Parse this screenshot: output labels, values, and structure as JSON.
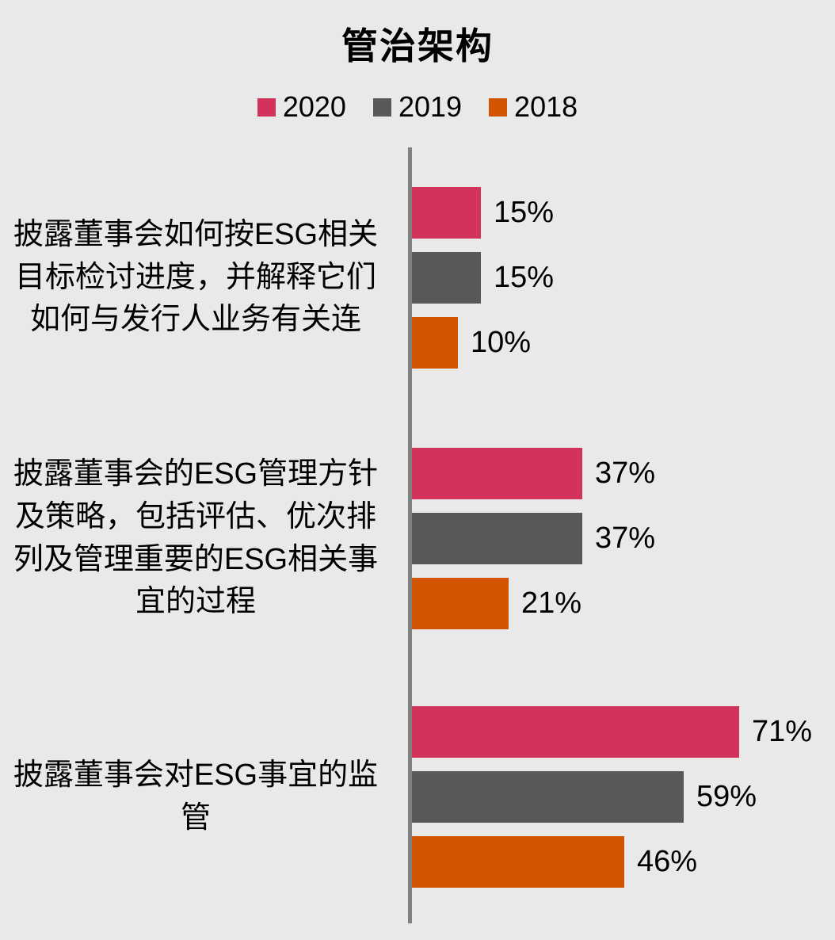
{
  "chart_data": {
    "type": "bar",
    "orientation": "horizontal",
    "title": "管治架构",
    "legend_position": "top",
    "grid": false,
    "background_color": "#e9e9e9",
    "axis_line_color": "#808080",
    "xlim": [
      0,
      100
    ],
    "value_label_format": "{value}%",
    "categories": [
      "披露董事会如何按ESG相关目标检讨进度，并解释它们如何与发行人业务有关连",
      "披露董事会的ESG管理方针及策略，包括评估、优次排列及管理重要的ESG相关事宜的过程",
      "披露董事会对ESG事宜的监管"
    ],
    "series": [
      {
        "name": "2020",
        "color": "#d2335a",
        "values": [
          15,
          37,
          71
        ]
      },
      {
        "name": "2019",
        "color": "#595959",
        "values": [
          15,
          37,
          59
        ]
      },
      {
        "name": "2018",
        "color": "#d35400",
        "values": [
          10,
          21,
          46
        ]
      }
    ]
  }
}
